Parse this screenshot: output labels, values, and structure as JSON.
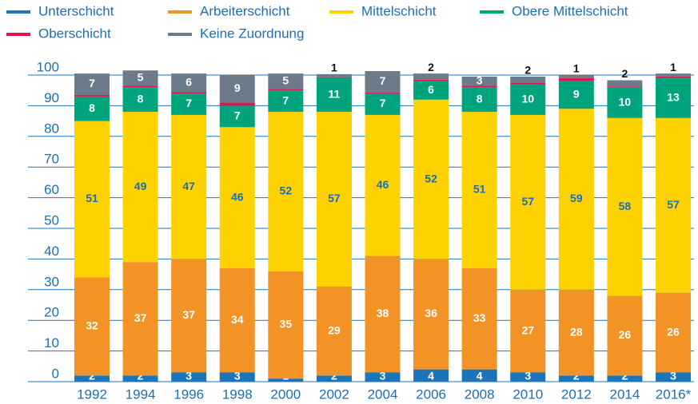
{
  "chart_data": {
    "type": "stacked-bar",
    "categories": [
      "1992",
      "1994",
      "1996",
      "1998",
      "2000",
      "2002",
      "2004",
      "2006",
      "2008",
      "2010",
      "2012",
      "2014",
      "2016*"
    ],
    "series": [
      {
        "name": "Unterschicht",
        "color": "#1b75bb",
        "values": [
          2,
          2,
          3,
          3,
          1,
          2,
          3,
          4,
          4,
          3,
          2,
          2,
          3
        ]
      },
      {
        "name": "Arbeiterschicht",
        "color": "#f39325",
        "values": [
          32,
          37,
          37,
          34,
          35,
          29,
          38,
          36,
          33,
          27,
          28,
          26,
          26
        ]
      },
      {
        "name": "Mittelschicht",
        "color": "#fed100",
        "values": [
          51,
          49,
          47,
          46,
          52,
          57,
          46,
          52,
          51,
          57,
          59,
          58,
          57
        ]
      },
      {
        "name": "Obere Mittelschicht",
        "color": "#00a47c",
        "values": [
          8,
          8,
          7,
          7,
          7,
          11,
          7,
          6,
          8,
          10,
          9,
          10,
          13
        ]
      },
      {
        "name": "Oberschicht",
        "color": "#e3134f",
        "values": [
          0.5,
          0.5,
          0.5,
          1,
          0.5,
          0.3,
          0.3,
          0.5,
          0.5,
          0.5,
          1,
          0.3,
          0.5
        ]
      },
      {
        "name": "Keine Zuordnung",
        "color": "#6c7b89",
        "values": [
          7,
          5,
          6,
          9,
          5,
          1,
          7,
          2,
          3,
          2,
          1,
          2,
          1
        ]
      }
    ],
    "ylim": [
      0,
      100
    ],
    "yticks": [
      0,
      10,
      20,
      30,
      40,
      50,
      60,
      70,
      80,
      90,
      100
    ],
    "grid": true
  }
}
